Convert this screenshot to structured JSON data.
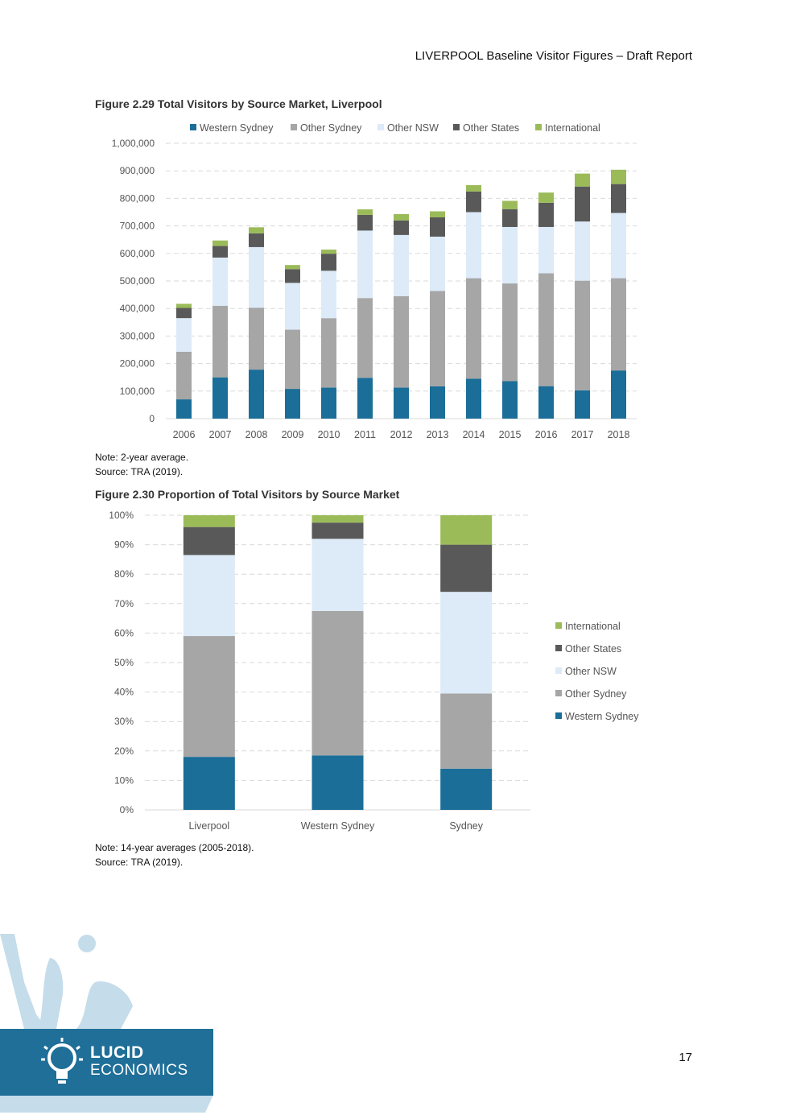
{
  "header": {
    "title": "LIVERPOOL Baseline Visitor Figures – Draft Report"
  },
  "figure1": {
    "title": "Figure 2.29 Total Visitors by Source Market, Liverpool",
    "note": "Note: 2-year average.",
    "source": "Source: TRA (2019)."
  },
  "figure2": {
    "title": "Figure 2.30 Proportion of Total Visitors by Source Market",
    "note": "Note: 14-year averages (2005-2018).",
    "source": "Source: TRA (2019)."
  },
  "page_number": "17",
  "logo": {
    "line1": "LUCID",
    "line2": "ECONOMICS"
  },
  "colors": {
    "western_sydney": "#1a6e98",
    "other_sydney": "#a6a6a6",
    "other_nsw": "#ddeaf7",
    "other_states": "#595959",
    "international": "#9bbb59"
  },
  "chart_data": [
    {
      "type": "bar",
      "stacked": true,
      "categories": [
        "2006",
        "2007",
        "2008",
        "2009",
        "2010",
        "2011",
        "2012",
        "2013",
        "2014",
        "2015",
        "2016",
        "2017",
        "2018"
      ],
      "series": [
        {
          "name": "Western Sydney",
          "values": [
            70000,
            150000,
            178000,
            108000,
            113000,
            148000,
            113000,
            117000,
            145000,
            136000,
            118000,
            103000,
            175000
          ]
        },
        {
          "name": "Other Sydney",
          "values": [
            173000,
            260000,
            225000,
            215000,
            252000,
            290000,
            332000,
            347000,
            365000,
            355000,
            410000,
            398000,
            335000
          ]
        },
        {
          "name": "Other NSW",
          "values": [
            122000,
            175000,
            220000,
            170000,
            172000,
            245000,
            222000,
            197000,
            240000,
            205000,
            168000,
            215000,
            237000
          ]
        },
        {
          "name": "Other States",
          "values": [
            37000,
            42000,
            50000,
            50000,
            62000,
            57000,
            53000,
            70000,
            75000,
            65000,
            88000,
            127000,
            105000
          ]
        },
        {
          "name": "International",
          "values": [
            15000,
            20000,
            22000,
            15000,
            15000,
            20000,
            23000,
            22000,
            23000,
            30000,
            37000,
            47000,
            52000
          ]
        }
      ],
      "legend_position": "top",
      "yticks": [
        "0",
        "100,000",
        "200,000",
        "300,000",
        "400,000",
        "500,000",
        "600,000",
        "700,000",
        "800,000",
        "900,000",
        "1,000,000"
      ],
      "ylim": [
        0,
        1000000
      ],
      "grid": true
    },
    {
      "type": "bar",
      "stacked": true,
      "categories": [
        "Liverpool",
        "Western Sydney",
        "Sydney"
      ],
      "series": [
        {
          "name": "Western Sydney",
          "values": [
            18,
            18.5,
            14
          ]
        },
        {
          "name": "Other Sydney",
          "values": [
            41,
            49,
            25.5
          ]
        },
        {
          "name": "Other NSW",
          "values": [
            27.5,
            24.5,
            34.5
          ]
        },
        {
          "name": "Other States",
          "values": [
            9.5,
            5.5,
            16
          ]
        },
        {
          "name": "International",
          "values": [
            4,
            2.5,
            10
          ]
        }
      ],
      "legend_position": "right",
      "yticks": [
        "0%",
        "10%",
        "20%",
        "30%",
        "40%",
        "50%",
        "60%",
        "70%",
        "80%",
        "90%",
        "100%"
      ],
      "ylim": [
        0,
        100
      ],
      "grid": true
    }
  ]
}
